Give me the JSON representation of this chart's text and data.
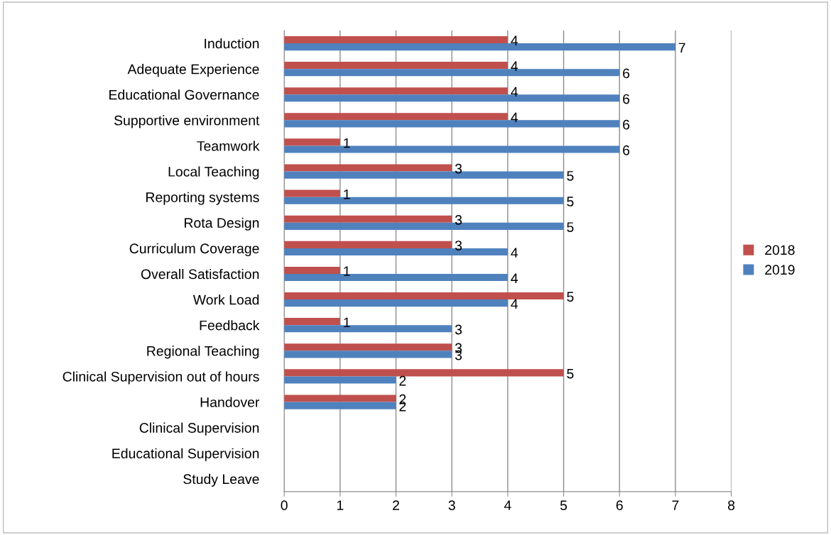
{
  "chart_data": {
    "type": "bar",
    "orientation": "horizontal",
    "categories": [
      "Induction",
      "Adequate Experience",
      "Educational Governance",
      "Supportive environment",
      "Teamwork",
      "Local Teaching",
      "Reporting systems",
      "Rota Design",
      "Curriculum Coverage",
      "Overall Satisfaction",
      "Work Load",
      "Feedback",
      "Regional Teaching",
      "Clinical Supervision out of hours",
      "Handover",
      "Clinical Supervision",
      "Educational Supervision",
      "Study Leave"
    ],
    "series": [
      {
        "name": "2018",
        "color": "#c0504d",
        "values": [
          4,
          4,
          4,
          4,
          1,
          3,
          1,
          3,
          3,
          1,
          5,
          1,
          3,
          5,
          2,
          null,
          null,
          null
        ]
      },
      {
        "name": "2019",
        "color": "#4f81bd",
        "values": [
          7,
          6,
          6,
          6,
          6,
          5,
          5,
          5,
          4,
          4,
          4,
          3,
          3,
          2,
          2,
          null,
          null,
          null
        ]
      }
    ],
    "xlim": [
      0,
      8
    ],
    "xticks": [
      0,
      1,
      2,
      3,
      4,
      5,
      6,
      7,
      8
    ],
    "grid": "x",
    "legend": "right",
    "data_labels": true
  }
}
